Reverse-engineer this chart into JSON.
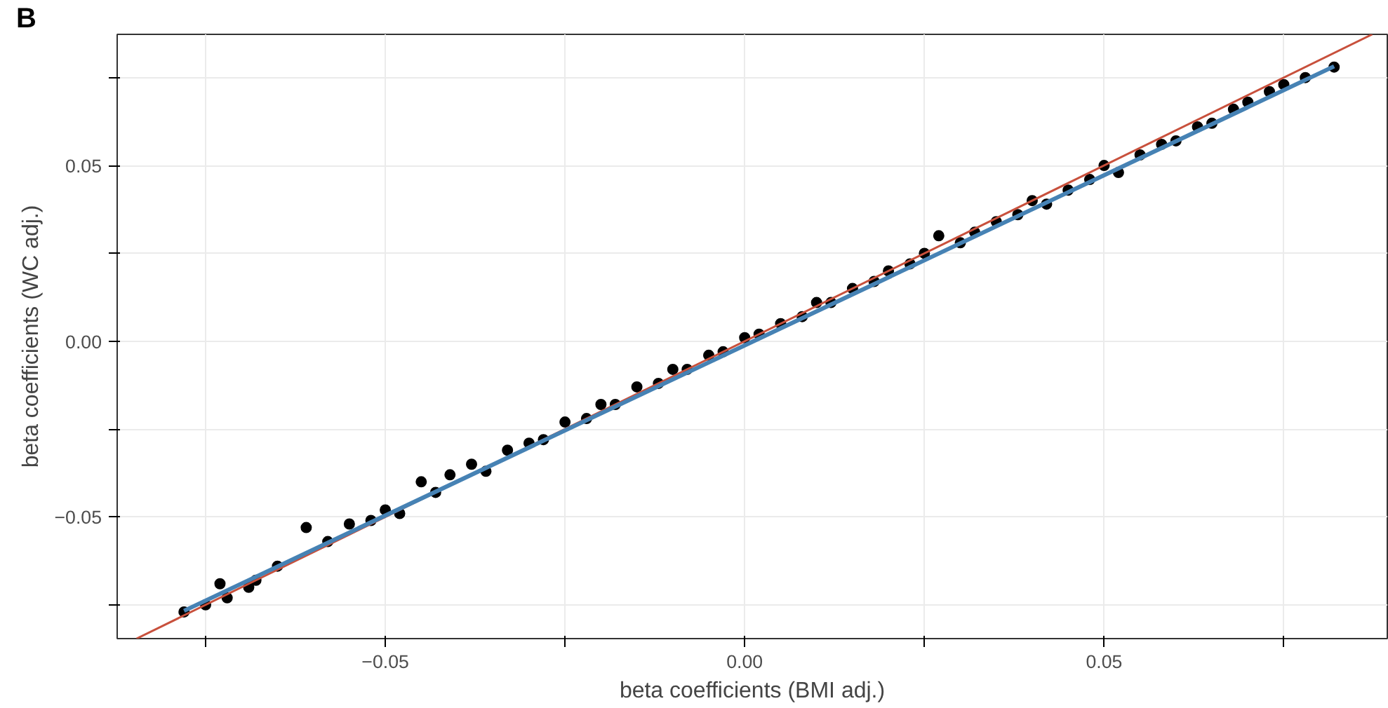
{
  "chart_data": {
    "type": "scatter",
    "xlabel": "beta coefficients (BMI adj.)",
    "ylabel": "beta coefficients (WC adj.)",
    "annotations": [
      "B"
    ],
    "xlim": [
      -0.0873,
      0.0894
    ],
    "ylim": [
      -0.0846,
      0.0873
    ],
    "xticks": [
      {
        "value": -0.075,
        "label": null
      },
      -0.05,
      {
        "value": -0.025,
        "label": null
      },
      {
        "value": 0,
        "label": "0.00"
      },
      {
        "value": 0.025,
        "label": null
      },
      0.05,
      {
        "value": 0.075,
        "label": null
      }
    ],
    "yticks": [
      {
        "value": -0.075,
        "label": null
      },
      -0.05,
      {
        "value": -0.025,
        "label": null
      },
      {
        "value": 0,
        "label": "0.00"
      },
      {
        "value": 0.025,
        "label": null
      },
      0.05,
      {
        "value": 0.075,
        "label": null
      }
    ],
    "grid": true,
    "series": [
      {
        "marker": "circle",
        "color": "#000000",
        "x": [
          -0.078,
          -0.075,
          -0.073,
          -0.072,
          -0.069,
          -0.068,
          -0.065,
          -0.061,
          -0.058,
          -0.055,
          -0.052,
          -0.05,
          -0.048,
          -0.045,
          -0.043,
          -0.041,
          -0.038,
          -0.036,
          -0.033,
          -0.03,
          -0.028,
          -0.025,
          -0.022,
          -0.02,
          -0.018,
          -0.015,
          -0.012,
          -0.01,
          -0.008,
          -0.005,
          -0.003,
          0,
          0.002,
          0.005,
          0.008,
          0.01,
          0.012,
          0.015,
          0.018,
          0.02,
          0.023,
          0.025,
          0.027,
          0.03,
          0.032,
          0.035,
          0.038,
          0.04,
          0.042,
          0.045,
          0.048,
          0.05,
          0.052,
          0.055,
          0.058,
          0.06,
          0.063,
          0.065,
          0.068,
          0.07,
          0.073,
          0.075,
          0.078,
          0.082
        ],
        "values": [
          -0.077,
          -0.075,
          -0.069,
          -0.073,
          -0.07,
          -0.068,
          -0.064,
          -0.053,
          -0.057,
          -0.052,
          -0.051,
          -0.048,
          -0.049,
          -0.04,
          -0.043,
          -0.038,
          -0.035,
          -0.037,
          -0.031,
          -0.029,
          -0.028,
          -0.023,
          -0.022,
          -0.018,
          -0.018,
          -0.013,
          -0.012,
          -0.008,
          -0.008,
          -0.004,
          -0.003,
          0.001,
          0.002,
          0.005,
          0.007,
          0.011,
          0.011,
          0.015,
          0.017,
          0.02,
          0.022,
          0.025,
          0.03,
          0.028,
          0.031,
          0.034,
          0.036,
          0.04,
          0.039,
          0.043,
          0.046,
          0.05,
          0.048,
          0.053,
          0.056,
          0.057,
          0.061,
          0.062,
          0.066,
          0.068,
          0.071,
          0.073,
          0.075,
          0.078
        ]
      },
      {
        "type": "line",
        "color": "#c8503c",
        "x": [
          -0.0846,
          0.0873
        ],
        "values": [
          -0.0846,
          0.0873
        ]
      },
      {
        "type": "line",
        "color": "#4682b4",
        "x": [
          -0.078,
          0.082
        ],
        "values": [
          -0.0767,
          0.0782
        ]
      }
    ]
  }
}
